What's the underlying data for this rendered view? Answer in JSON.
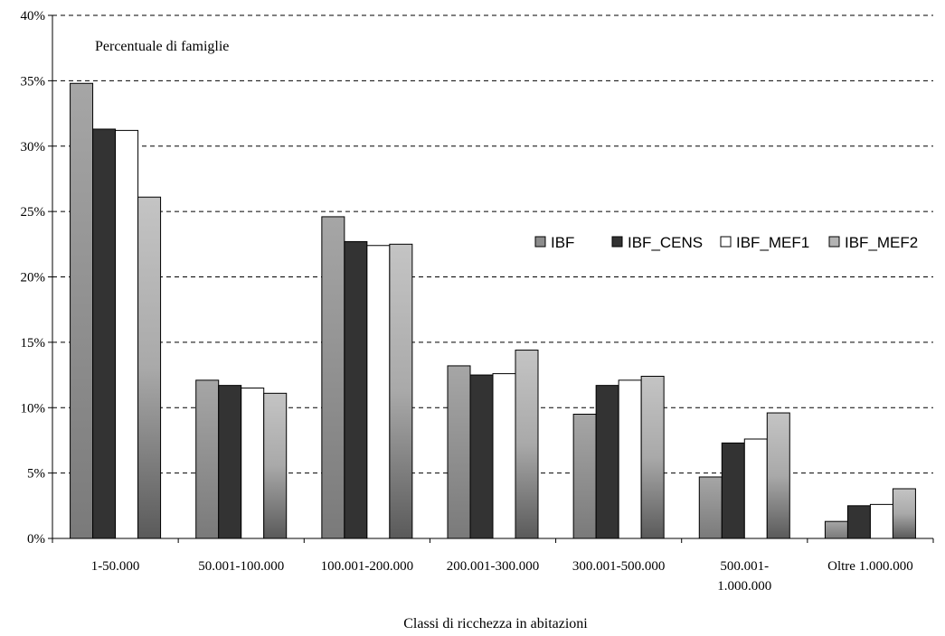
{
  "chart_data": {
    "type": "bar",
    "ylabel": "Percentuale di famiglie",
    "xlabel": "Classi di ricchezza in abitazioni",
    "ylim": [
      0,
      40
    ],
    "yticks": [
      "0%",
      "5%",
      "10%",
      "15%",
      "20%",
      "25%",
      "30%",
      "35%",
      "40%"
    ],
    "grid": true,
    "legend_position": "right",
    "categories": [
      [
        "1-50.000"
      ],
      [
        "50.001-100.000"
      ],
      [
        "100.001-200.000"
      ],
      [
        "200.001-300.000"
      ],
      [
        "300.001-500.000"
      ],
      [
        "500.001-",
        "1.000.000"
      ],
      [
        "Oltre 1.000.000"
      ]
    ],
    "series": [
      {
        "name": "IBF",
        "color": "#8c8c8c",
        "values": [
          34.8,
          12.1,
          24.6,
          13.2,
          9.5,
          4.7,
          1.3
        ]
      },
      {
        "name": "IBF_CENS",
        "color": "#333333",
        "values": [
          31.3,
          11.7,
          22.7,
          12.5,
          11.7,
          7.3,
          2.5
        ]
      },
      {
        "name": "IBF_MEF1",
        "color": "#ffffff",
        "values": [
          31.2,
          11.5,
          22.4,
          12.6,
          12.1,
          7.6,
          2.6
        ]
      },
      {
        "name": "IBF_MEF2",
        "color": "#b3b3b3",
        "values": [
          26.1,
          11.1,
          22.5,
          14.4,
          12.4,
          9.6,
          3.8
        ]
      }
    ]
  }
}
